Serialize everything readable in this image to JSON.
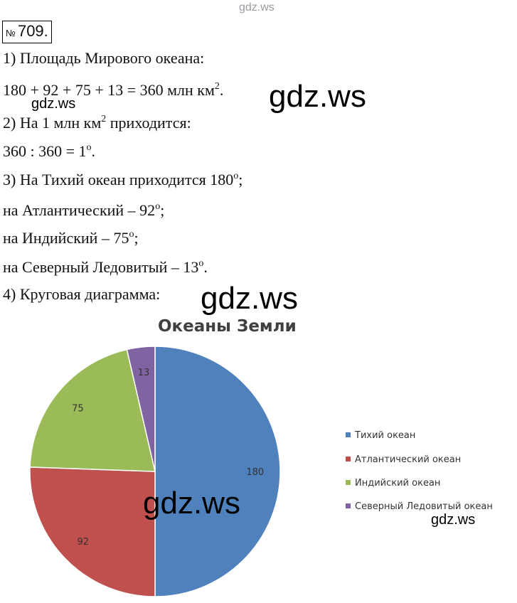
{
  "watermark": "gdz.ws",
  "task": {
    "sign": "№",
    "number": "709."
  },
  "lines": {
    "l1": "1) Площадь Мирового океана:",
    "l2_pre": "180 + 92 + 75 + 13 = 360 млн км",
    "l2_sup": "2",
    "l2_post": ".",
    "l3_pre": "2) На 1 млн км",
    "l3_sup": "2",
    "l3_post": " приходится:",
    "l4_pre": "360 : 360 = 1",
    "l4_sup": "o",
    "l4_post": ".",
    "l5_pre": "3) На Тихий океан приходится 180",
    "l5_sup": "o",
    "l5_post": ";",
    "l6_pre": "на Атлантический – 92",
    "l6_sup": "o",
    "l6_post": ";",
    "l7_pre": "на Индийский – 75",
    "l7_sup": "o",
    "l7_post": ";",
    "l8_pre": "на Северный Ледовитый – 13",
    "l8_sup": "o",
    "l8_post": ".",
    "l9": "4) Круговая диаграмма:"
  },
  "chart_data": {
    "type": "pie",
    "title": "Океаны Земли",
    "categories": [
      "Тихий океан",
      "Атлантический океан",
      "Индийский океан",
      "Северный Ледовитый океан"
    ],
    "values": [
      180,
      92,
      75,
      13
    ],
    "colors": [
      "#4f81bd",
      "#c0504d",
      "#9bbb59",
      "#8064a2"
    ],
    "data_labels": [
      "180",
      "92",
      "75",
      "13"
    ],
    "legend_position": "right"
  }
}
